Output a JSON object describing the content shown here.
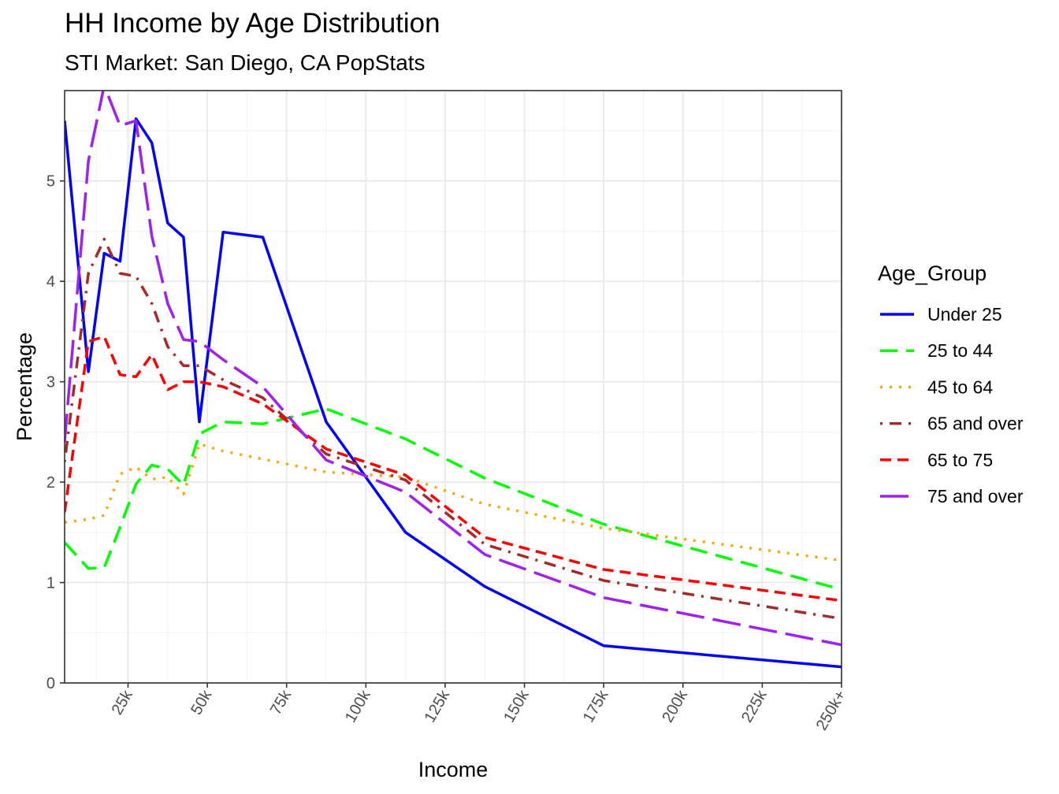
{
  "chart_data": {
    "type": "line",
    "title": "HH Income by Age Distribution",
    "subtitle": "STI Market: San Diego, CA PopStats",
    "xlabel": "Income",
    "ylabel": "Percentage",
    "xlim": [
      5,
      250
    ],
    "ylim": [
      0,
      5.9
    ],
    "x_ticks": [
      {
        "value": 25,
        "label": "25k"
      },
      {
        "value": 50,
        "label": "50k"
      },
      {
        "value": 75,
        "label": "75k"
      },
      {
        "value": 100,
        "label": "100k"
      },
      {
        "value": 125,
        "label": "125k"
      },
      {
        "value": 150,
        "label": "150k"
      },
      {
        "value": 175,
        "label": "175k"
      },
      {
        "value": 200,
        "label": "200k"
      },
      {
        "value": 225,
        "label": "225k"
      },
      {
        "value": 250,
        "label": "250k+"
      }
    ],
    "y_ticks": [
      {
        "value": 0,
        "label": "0"
      },
      {
        "value": 1,
        "label": "1"
      },
      {
        "value": 2,
        "label": "2"
      },
      {
        "value": 3,
        "label": "3"
      },
      {
        "value": 4,
        "label": "4"
      },
      {
        "value": 5,
        "label": "5"
      }
    ],
    "grid": true,
    "legend": {
      "title": "Age_Group",
      "position": "right"
    },
    "series": [
      {
        "name": "Under 25",
        "color": "#0000ff",
        "dash": "solid",
        "x": [
          5,
          12.5,
          17.5,
          22.5,
          27.5,
          32.5,
          37.5,
          42.5,
          47.5,
          55,
          67.5,
          87.5,
          112.5,
          137.5,
          175,
          250
        ],
        "y": [
          5.6,
          3.1,
          4.28,
          4.2,
          5.62,
          5.38,
          4.58,
          4.44,
          2.6,
          4.49,
          4.44,
          2.6,
          1.5,
          0.96,
          0.37,
          0.16
        ]
      },
      {
        "name": "25 to 44",
        "color": "#00ff00",
        "dash": "dashed",
        "x": [
          5,
          12.5,
          17.5,
          22.5,
          27.5,
          32.5,
          37.5,
          42.5,
          47.5,
          55,
          67.5,
          87.5,
          112.5,
          137.5,
          175,
          250
        ],
        "y": [
          1.4,
          1.14,
          1.15,
          1.55,
          1.98,
          2.17,
          2.13,
          1.97,
          2.48,
          2.6,
          2.58,
          2.73,
          2.43,
          2.04,
          1.58,
          0.93
        ]
      },
      {
        "name": "45 to 64",
        "color": "#ffa500",
        "dash": "dotted",
        "x": [
          5,
          12.5,
          17.5,
          22.5,
          27.5,
          32.5,
          37.5,
          42.5,
          47.5,
          55,
          67.5,
          87.5,
          112.5,
          137.5,
          175,
          250
        ],
        "y": [
          1.6,
          1.63,
          1.67,
          2.08,
          2.15,
          2.03,
          2.05,
          1.88,
          2.38,
          2.31,
          2.23,
          2.1,
          2.05,
          1.78,
          1.54,
          1.22
        ]
      },
      {
        "name": "65 and over",
        "color": "#a52a2a",
        "dash": "dotdash",
        "x": [
          5,
          12.5,
          17.5,
          22.5,
          27.5,
          32.5,
          37.5,
          42.5,
          47.5,
          55,
          67.5,
          87.5,
          112.5,
          137.5,
          175,
          250
        ],
        "y": [
          2.2,
          4.08,
          4.42,
          4.08,
          4.05,
          3.78,
          3.35,
          3.16,
          3.16,
          3.02,
          2.84,
          2.28,
          2.02,
          1.38,
          1.02,
          0.64
        ]
      },
      {
        "name": "65 to 75",
        "color": "#ff0000",
        "dash": "dashed-short",
        "x": [
          5,
          12.5,
          17.5,
          22.5,
          27.5,
          32.5,
          37.5,
          42.5,
          47.5,
          55,
          67.5,
          87.5,
          112.5,
          137.5,
          175,
          250
        ],
        "y": [
          1.7,
          3.4,
          3.45,
          3.07,
          3.05,
          3.27,
          2.92,
          3.0,
          3.0,
          2.95,
          2.78,
          2.33,
          2.07,
          1.45,
          1.13,
          0.82
        ]
      },
      {
        "name": "75 and over",
        "color": "#a020f0",
        "dash": "longdash",
        "x": [
          5,
          12.5,
          17.5,
          22.5,
          27.5,
          32.5,
          37.5,
          42.5,
          47.5,
          55,
          67.5,
          87.5,
          112.5,
          137.5,
          175,
          250
        ],
        "y": [
          2.4,
          5.2,
          5.95,
          5.55,
          5.6,
          4.45,
          3.78,
          3.42,
          3.4,
          3.22,
          2.95,
          2.22,
          1.9,
          1.28,
          0.85,
          0.38
        ]
      }
    ]
  }
}
